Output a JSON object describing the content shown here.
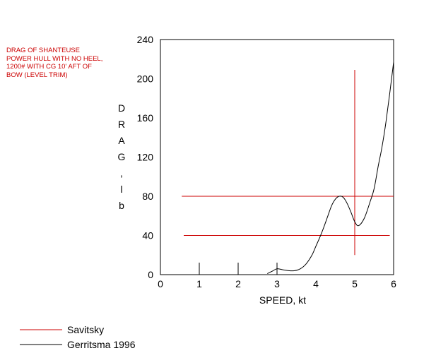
{
  "chart_data": {
    "type": "line",
    "annotation": [
      "DRAG OF SHANTEUSE",
      "POWER HULL WITH NO HEEL,",
      "1200# WITH CG 10' AFT OF",
      "BOW (LEVEL TRIM)"
    ],
    "xlabel": "SPEED, kt",
    "ylabel_chars": [
      "D",
      "R",
      "A",
      "G",
      ",",
      "l",
      "b"
    ],
    "xlim": [
      0,
      6
    ],
    "ylim": [
      0,
      240
    ],
    "x_ticks": [
      0,
      1,
      2,
      3,
      4,
      5,
      6
    ],
    "y_ticks": [
      0,
      40,
      80,
      120,
      160,
      200,
      240
    ],
    "legend": [
      {
        "name": "Savitsky",
        "color": "#cc0000"
      },
      {
        "name": "Gerritsma 1996",
        "color": "#000000"
      }
    ],
    "series": [
      {
        "name": "Gerritsma 1996",
        "color": "#000000",
        "x": [
          2.75,
          2.9,
          3.0,
          3.15,
          3.3,
          3.45,
          3.6,
          3.75,
          3.9,
          4.0,
          4.1,
          4.2,
          4.3,
          4.4,
          4.5,
          4.6,
          4.7,
          4.8,
          4.9,
          5.0,
          5.1,
          5.25,
          5.4,
          5.5,
          5.6,
          5.7,
          5.8,
          5.9,
          6.0
        ],
        "y": [
          1,
          4,
          6,
          5,
          4,
          4,
          6,
          11,
          20,
          29,
          38,
          48,
          59,
          70,
          77,
          80,
          79,
          73,
          64,
          54,
          50,
          58,
          75,
          88,
          110,
          130,
          155,
          185,
          217
        ]
      }
    ],
    "savitsky_lines": [
      {
        "x": [
          0.55,
          6.0
        ],
        "y": [
          80,
          80
        ]
      },
      {
        "x": [
          0.6,
          5.9
        ],
        "y": [
          40,
          40
        ]
      },
      {
        "x": [
          5.0,
          5.0
        ],
        "y": [
          20,
          209
        ]
      }
    ],
    "bottom_ticks_at": [
      1,
      2,
      3
    ]
  }
}
